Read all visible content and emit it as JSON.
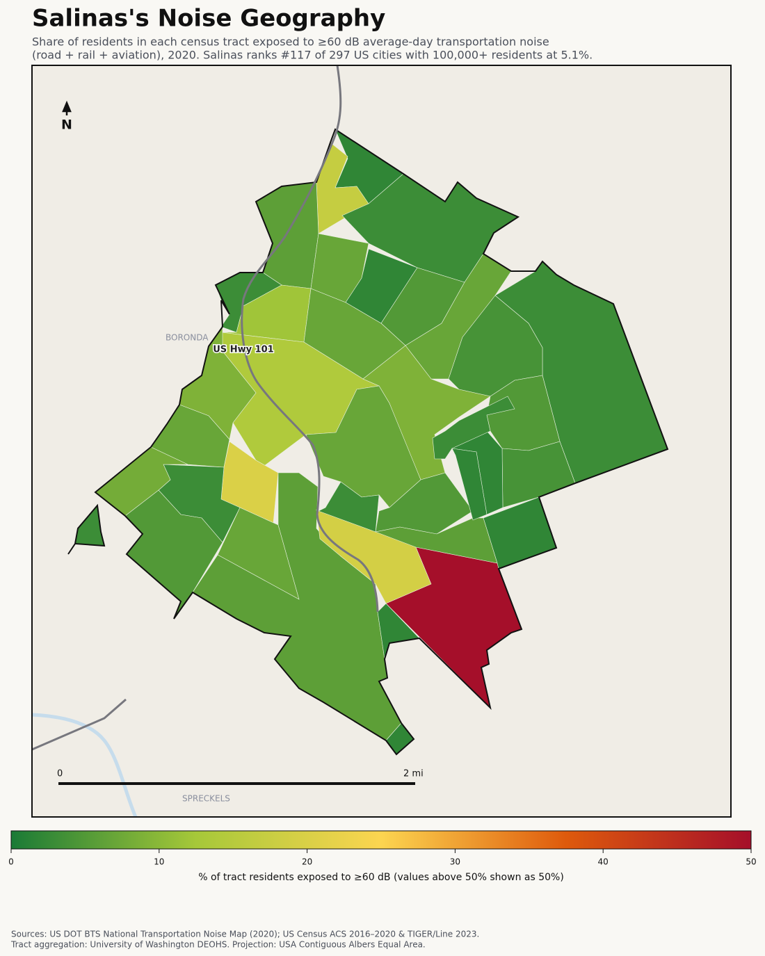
{
  "chart_data": {
    "type": "choropleth",
    "title": "Salinas's Noise Geography",
    "subtitle": [
      "Share of residents in each census tract exposed to ≥60 dB average-day transportation noise",
      "(road + rail + aviation), 2020. Salinas ranks #117 of 297 US cities with 100,000+ residents at 5.1%."
    ],
    "values": [
      2,
      17,
      3,
      6,
      3,
      12,
      7,
      2,
      5,
      7,
      14,
      7,
      3,
      4,
      9,
      7,
      9,
      7,
      20,
      3,
      8,
      3,
      5,
      7,
      6,
      2,
      19,
      3,
      50,
      2,
      2,
      5,
      6,
      5,
      4,
      2,
      3,
      2
    ],
    "colorbar": {
      "label": "% of tract residents exposed to ≥60 dB (values above 50% shown as 50%)",
      "lim": [
        0,
        50
      ],
      "ticks": [
        0,
        10,
        20,
        30,
        40,
        50
      ],
      "colors": [
        "#1a7a36",
        "#a6c839",
        "#fcd550",
        "#de5a0c",
        "#a50f2a"
      ]
    },
    "places": [
      "BORONDA",
      "SPRECKELS"
    ],
    "road_label": "US Hwy 101",
    "north": "N",
    "scale_bar": [
      "0",
      "2 mi"
    ],
    "source": [
      "Sources: US DOT BTS National Transportation Noise Map (2020); US Census ACS 2016–2020 & TIGER/Line 2023.",
      "Tract aggregation: University of Washington DEOHS. Projection: USA Contiguous Albers Equal Area."
    ]
  }
}
